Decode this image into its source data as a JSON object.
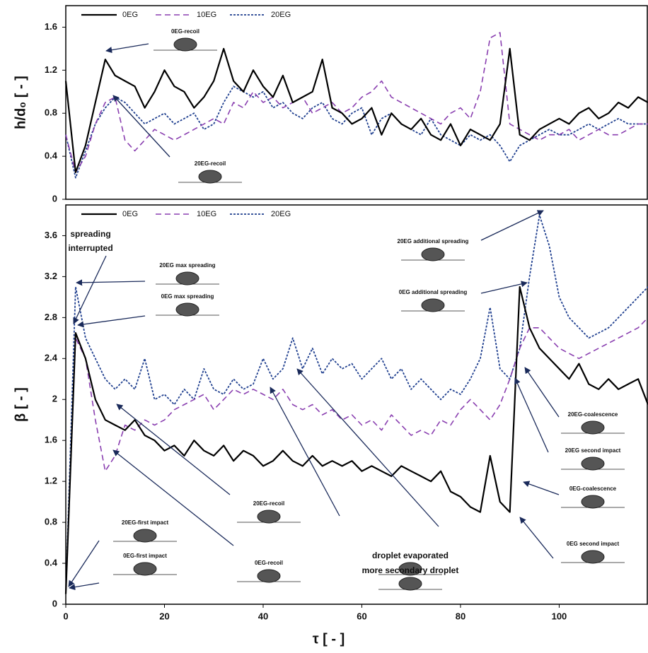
{
  "chart_data": [
    {
      "type": "line",
      "y_label": "h/d₀ [ - ]",
      "x": [
        0,
        2,
        4,
        6,
        8,
        10,
        12,
        14,
        16,
        18,
        20,
        22,
        24,
        26,
        28,
        30,
        32,
        34,
        36,
        38,
        40,
        42,
        44,
        46,
        48,
        50,
        52,
        54,
        56,
        58,
        60,
        62,
        64,
        66,
        68,
        70,
        72,
        74,
        76,
        78,
        80,
        82,
        84,
        86,
        88,
        90,
        92,
        94,
        96,
        98,
        100,
        102,
        104,
        106,
        108,
        110,
        112,
        114,
        116,
        118
      ],
      "xlim": [
        0,
        118
      ],
      "ylim": [
        0,
        1.8
      ],
      "yticks": [
        0,
        0.4,
        0.8,
        1.2,
        1.6
      ],
      "series": [
        {
          "name": "0EG",
          "color": "#000000",
          "line_style": "solid",
          "values": [
            1.1,
            0.25,
            0.5,
            0.9,
            1.3,
            1.15,
            1.1,
            1.05,
            0.85,
            1.0,
            1.2,
            1.05,
            1.0,
            0.85,
            0.95,
            1.1,
            1.4,
            1.1,
            1.0,
            1.2,
            1.05,
            0.95,
            1.15,
            0.9,
            0.95,
            1.0,
            1.3,
            0.85,
            0.8,
            0.7,
            0.75,
            0.85,
            0.6,
            0.8,
            0.7,
            0.65,
            0.75,
            0.6,
            0.55,
            0.7,
            0.5,
            0.65,
            0.6,
            0.55,
            0.7,
            1.4,
            0.6,
            0.55,
            0.65,
            0.7,
            0.75,
            0.7,
            0.8,
            0.85,
            0.75,
            0.8,
            0.9,
            0.85,
            0.95,
            0.9
          ]
        },
        {
          "name": "10EG",
          "color": "#8a3fb0",
          "line_style": "dashed",
          "values": [
            0.6,
            0.25,
            0.4,
            0.7,
            0.9,
            0.95,
            0.55,
            0.45,
            0.55,
            0.65,
            0.6,
            0.55,
            0.6,
            0.65,
            0.7,
            0.75,
            0.7,
            0.9,
            0.85,
            1.0,
            0.9,
            0.95,
            0.85,
            0.9,
            0.95,
            0.8,
            0.85,
            0.9,
            0.8,
            0.85,
            0.95,
            1.0,
            1.1,
            0.95,
            0.9,
            0.85,
            0.8,
            0.75,
            0.7,
            0.8,
            0.85,
            0.75,
            1.0,
            1.5,
            1.55,
            0.7,
            0.65,
            0.6,
            0.55,
            0.6,
            0.6,
            0.65,
            0.55,
            0.6,
            0.65,
            0.6,
            0.6,
            0.65,
            0.7,
            0.7
          ]
        },
        {
          "name": "20EG",
          "color": "#1f3f8f",
          "line_style": "dotted",
          "values": [
            0.6,
            0.2,
            0.45,
            0.7,
            0.85,
            0.95,
            0.9,
            0.8,
            0.7,
            0.75,
            0.8,
            0.7,
            0.75,
            0.8,
            0.65,
            0.7,
            0.9,
            1.05,
            1.0,
            0.95,
            1.0,
            0.85,
            0.9,
            0.8,
            0.75,
            0.85,
            0.9,
            0.75,
            0.7,
            0.8,
            0.85,
            0.6,
            0.75,
            0.8,
            0.7,
            0.65,
            0.6,
            0.75,
            0.6,
            0.55,
            0.5,
            0.6,
            0.55,
            0.6,
            0.5,
            0.35,
            0.5,
            0.55,
            0.6,
            0.65,
            0.6,
            0.6,
            0.65,
            0.7,
            0.65,
            0.7,
            0.75,
            0.7,
            0.7,
            0.7
          ]
        }
      ],
      "annotations": [
        "0EG-recoil",
        "20EG-recoil"
      ]
    },
    {
      "type": "line",
      "y_label": "β [ - ]",
      "x_label": "τ [ - ]",
      "x": [
        0,
        2,
        4,
        6,
        8,
        10,
        12,
        14,
        16,
        18,
        20,
        22,
        24,
        26,
        28,
        30,
        32,
        34,
        36,
        38,
        40,
        42,
        44,
        46,
        48,
        50,
        52,
        54,
        56,
        58,
        60,
        62,
        64,
        66,
        68,
        70,
        72,
        74,
        76,
        78,
        80,
        82,
        84,
        86,
        88,
        90,
        92,
        94,
        96,
        98,
        100,
        102,
        104,
        106,
        108,
        110,
        112,
        114,
        116,
        118
      ],
      "xlim": [
        0,
        118
      ],
      "xticks": [
        0,
        20,
        40,
        60,
        80,
        100
      ],
      "ylim": [
        0,
        3.9
      ],
      "yticks": [
        0,
        0.4,
        0.8,
        1.2,
        1.6,
        2,
        2.4,
        2.8,
        3.2,
        3.6
      ],
      "series": [
        {
          "name": "0EG",
          "color": "#000000",
          "line_style": "solid",
          "values": [
            0.1,
            2.65,
            2.4,
            2.0,
            1.8,
            1.75,
            1.7,
            1.8,
            1.65,
            1.6,
            1.5,
            1.55,
            1.45,
            1.6,
            1.5,
            1.45,
            1.55,
            1.4,
            1.5,
            1.45,
            1.35,
            1.4,
            1.5,
            1.4,
            1.35,
            1.45,
            1.35,
            1.4,
            1.35,
            1.4,
            1.3,
            1.35,
            1.3,
            1.25,
            1.35,
            1.3,
            1.25,
            1.2,
            1.3,
            1.1,
            1.05,
            0.95,
            0.9,
            1.45,
            1.0,
            0.9,
            3.1,
            2.7,
            2.5,
            2.4,
            2.3,
            2.2,
            2.35,
            2.15,
            2.1,
            2.2,
            2.1,
            2.15,
            2.2,
            1.95
          ]
        },
        {
          "name": "10EG",
          "color": "#8a3fb0",
          "line_style": "dashed",
          "values": [
            0.1,
            2.6,
            2.4,
            1.8,
            1.3,
            1.45,
            1.75,
            1.7,
            1.8,
            1.75,
            1.8,
            1.9,
            1.95,
            2.0,
            2.05,
            1.9,
            2.0,
            2.1,
            2.05,
            2.1,
            2.05,
            2.0,
            2.1,
            1.95,
            1.9,
            1.95,
            1.85,
            1.9,
            1.8,
            1.85,
            1.75,
            1.8,
            1.7,
            1.85,
            1.75,
            1.65,
            1.7,
            1.65,
            1.8,
            1.75,
            1.9,
            2.0,
            1.9,
            1.8,
            1.95,
            2.2,
            2.5,
            2.7,
            2.7,
            2.6,
            2.5,
            2.45,
            2.4,
            2.45,
            2.5,
            2.55,
            2.6,
            2.65,
            2.7,
            2.8
          ]
        },
        {
          "name": "20EG",
          "color": "#1f3f8f",
          "line_style": "dotted",
          "values": [
            0.1,
            3.1,
            2.6,
            2.4,
            2.2,
            2.1,
            2.2,
            2.1,
            2.4,
            2.0,
            2.05,
            1.95,
            2.1,
            2.0,
            2.3,
            2.1,
            2.05,
            2.2,
            2.1,
            2.15,
            2.4,
            2.2,
            2.3,
            2.6,
            2.3,
            2.5,
            2.25,
            2.4,
            2.3,
            2.35,
            2.2,
            2.3,
            2.4,
            2.2,
            2.3,
            2.1,
            2.2,
            2.1,
            2.0,
            2.1,
            2.05,
            2.2,
            2.4,
            2.9,
            2.3,
            2.2,
            2.5,
            3.2,
            3.8,
            3.5,
            3.0,
            2.8,
            2.7,
            2.6,
            2.65,
            2.7,
            2.8,
            2.9,
            3.0,
            3.1
          ]
        }
      ],
      "annotations": [
        "spreading",
        "interrupted",
        "20EG max spreading",
        "0EG max spreading",
        "20EG additional spreading",
        "0EG additional spreading",
        "20EG-coalescence",
        "20EG second impact",
        "0EG-coalescence",
        "0EG second impact",
        "20EG-first impact",
        "0EG-first impact",
        "20EG-recoil",
        "0EG-recoil",
        "droplet evaporated",
        "more secondary droplet"
      ]
    }
  ]
}
